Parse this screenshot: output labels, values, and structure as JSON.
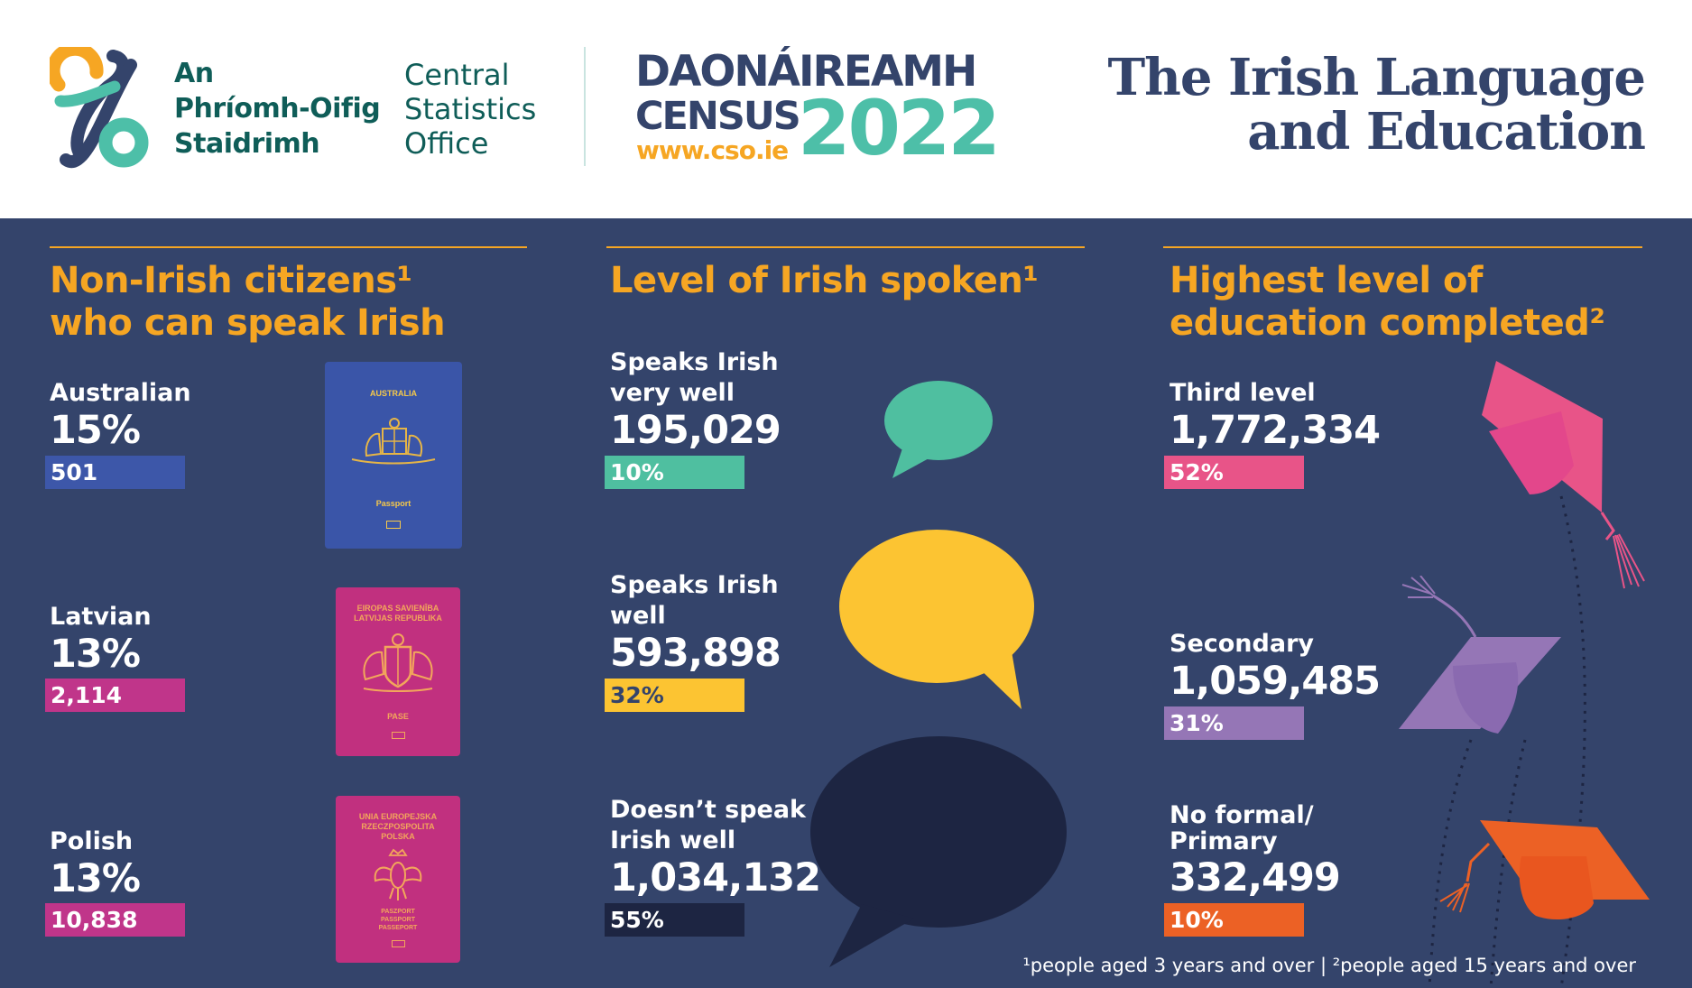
{
  "header": {
    "org_irish": [
      "An",
      "Phríomh-Oifig",
      "Staidrimh"
    ],
    "org_english": [
      "Central",
      "Statistics",
      "Office"
    ],
    "census_irish": "DAONÁIREAMH",
    "census_english": "CENSUS",
    "census_url": "www.cso.ie",
    "census_year": "2022",
    "title_line1": "The Irish Language",
    "title_line2": "and Education"
  },
  "sections": {
    "citizens": {
      "title_line1": "Non-Irish citizens¹",
      "title_line2": "who can speak Irish",
      "items": [
        {
          "name": "Australian",
          "percent": "15%",
          "count": "501",
          "color": "#3d57a9",
          "passport": {
            "color": "#3a55a8",
            "lines": [
              "AUSTRALIA"
            ],
            "label": "Passport",
            "emblem": "coat-of-arms-icon"
          }
        },
        {
          "name": "Latvian",
          "percent": "13%",
          "count": "2,114",
          "color": "#c0358a",
          "passport": {
            "color": "#c1307f",
            "lines": [
              "EIROPAS SAVIENĪBA",
              "LATVIJAS REPUBLIKA"
            ],
            "label": "PASE",
            "emblem": "coat-of-arms-icon"
          }
        },
        {
          "name": "Polish",
          "percent": "13%",
          "count": "10,838",
          "color": "#c0358a",
          "passport": {
            "color": "#c1307f",
            "lines": [
              "UNIA EUROPEJSKA",
              "RZECZPOSPOLITA",
              "POLSKA"
            ],
            "label": "PASZPORT PASSPORT PASSEPORT",
            "emblem": "eagle-icon"
          }
        }
      ]
    },
    "irish_level": {
      "title": "Level of Irish spoken¹",
      "items": [
        {
          "label_line1": "Speaks Irish",
          "label_line2": "very well",
          "count": "195,029",
          "percent": "10%",
          "color": "#4fbfa0"
        },
        {
          "label_line1": "Speaks Irish",
          "label_line2": "well",
          "count": "593,898",
          "percent": "32%",
          "color": "#fcc432"
        },
        {
          "label_line1": "Doesn’t speak",
          "label_line2": "Irish well",
          "count": "1,034,132",
          "percent": "55%",
          "color": "#1d2542"
        }
      ]
    },
    "education": {
      "title_line1": "Highest level of",
      "title_line2": "education completed²",
      "items": [
        {
          "label_line1": "Third level",
          "label_line2": "",
          "count": "1,772,334",
          "percent": "52%",
          "color": "#e85488"
        },
        {
          "label_line1": "Secondary",
          "label_line2": "",
          "count": "1,059,485",
          "percent": "31%",
          "color": "#9576b6"
        },
        {
          "label_line1": "No formal/",
          "label_line2": "Primary",
          "count": "332,499",
          "percent": "10%",
          "color": "#ec6125"
        }
      ]
    }
  },
  "footnote": "¹people aged 3 years and over  |  ²people aged 15 years and over",
  "colors": {
    "background": "#34446b",
    "accent": "#f6a623",
    "header_bg": "#ffffff",
    "teal": "#4dbfa8"
  }
}
